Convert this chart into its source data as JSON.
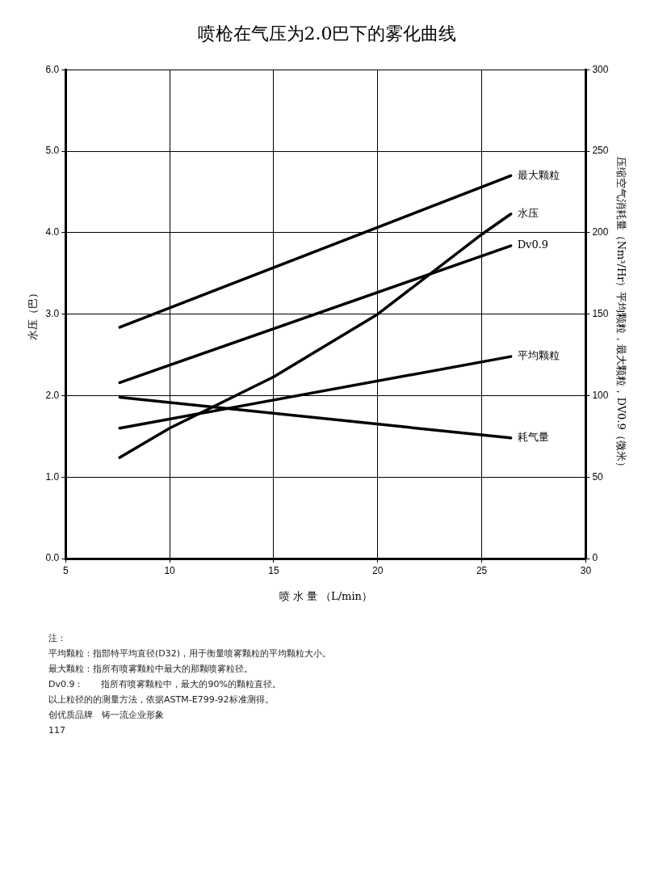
{
  "chart_data": {
    "type": "line",
    "title": "喷枪在气压为2.0巴下的雾化曲线",
    "xlabel": "喷 水 量 （L/min）",
    "ylabel": "水压（巴）",
    "y2label": "压缩空气消耗量（Nm³/Hr）平均颗粒，最大颗粒，DV0.9（微米）",
    "series": [
      {
        "name": "最大颗粒",
        "color": "#000000",
        "axis": "y2",
        "x": [
          7.6,
          26.4
        ],
        "values": [
          142,
          235
        ]
      },
      {
        "name": "Dv0.9",
        "color": "#000000",
        "axis": "y2",
        "x": [
          7.6,
          26.4
        ],
        "values": [
          108,
          192
        ]
      },
      {
        "name": "水压",
        "color": "#000000",
        "x": [
          7.6,
          10,
          15,
          20,
          25,
          26.4
        ],
        "values": [
          1.24,
          1.6,
          2.23,
          3.0,
          3.98,
          4.23
        ]
      },
      {
        "name": "平均颗粒",
        "color": "#000000",
        "axis": "y2",
        "x": [
          7.6,
          26.4
        ],
        "values": [
          80,
          124
        ]
      },
      {
        "name": "耗气量",
        "color": "#000000",
        "axis": "y2",
        "x": [
          7.6,
          26.4
        ],
        "values": [
          99,
          74
        ]
      }
    ],
    "xlim": [
      5,
      30
    ],
    "xticks": [
      5,
      10,
      15,
      20,
      25,
      30
    ],
    "ylim": [
      0,
      6
    ],
    "yticks": [
      {
        "value": 0,
        "label": "0.0"
      },
      {
        "value": 1,
        "label": "1.0"
      },
      {
        "value": 2,
        "label": "2.0"
      },
      {
        "value": 3,
        "label": "3.0"
      },
      {
        "value": 4,
        "label": "4.0"
      },
      {
        "value": 5,
        "label": "5.0"
      },
      {
        "value": 6,
        "label": "6.0"
      }
    ],
    "y2lim": [
      0,
      300
    ],
    "y2ticks": [
      0,
      50,
      100,
      150,
      200,
      250,
      300
    ],
    "grid": true,
    "legend": false,
    "marker": "none",
    "line_style": "solid",
    "annotations": [
      "注：",
      "平均颗粒：指部特平均直径(D32)，用于衡量喷雾颗粒的平均颗粒大小。",
      "最大颗粒：指所有喷雾颗粒中最大的那颗喷雾粒径。",
      "Dv0.9：　　指所有喷雾颗粒中，最大的90%的颗粒直径。",
      "以上粒径的的测量方法，依据ASTM-E799-92标准测得。",
      "创优质品牌　铸一流企业形象",
      "117"
    ]
  }
}
